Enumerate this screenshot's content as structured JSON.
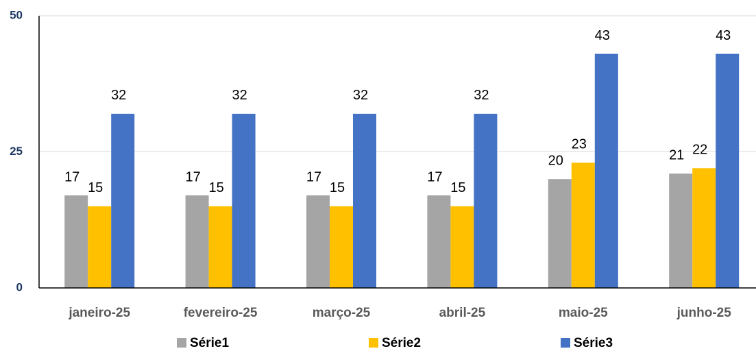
{
  "chart_data": {
    "type": "bar",
    "categories": [
      "janeiro-25",
      "fevereiro-25",
      "março-25",
      "abril-25",
      "maio-25",
      "junho-25"
    ],
    "series": [
      {
        "name": "Série1",
        "color": "#a5a5a5",
        "values": [
          17,
          17,
          17,
          17,
          20,
          21
        ]
      },
      {
        "name": "Série2",
        "color": "#ffc000",
        "values": [
          15,
          15,
          15,
          15,
          23,
          22
        ]
      },
      {
        "name": "Série3",
        "color": "#4472c4",
        "values": [
          32,
          32,
          32,
          32,
          43,
          43
        ]
      }
    ],
    "ylim": [
      0,
      50
    ],
    "yticks": [
      0,
      25,
      50
    ],
    "grid": true,
    "legend": "bottom"
  }
}
